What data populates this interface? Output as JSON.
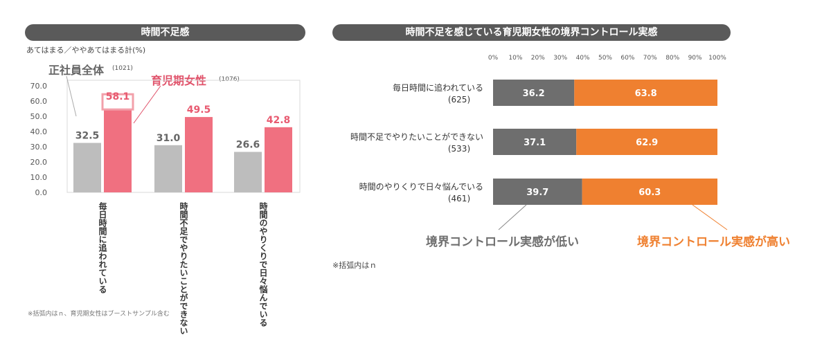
{
  "left": {
    "banner": "時間不足感",
    "subtitle": "あてはまる／ややあてはまる計(%)",
    "legend": {
      "all": {
        "label": "正社員全体",
        "n": "(1021)",
        "color": "#bdbdbd"
      },
      "mothers": {
        "label": "育児期女性",
        "n": "(1076)",
        "color": "#f07080"
      }
    },
    "footnote": "※括弧内はｎ、育児期女性はブーストサンプル含む"
  },
  "right": {
    "banner": "時間不足を感じている育児期女性の境界コントロール実感",
    "footnote": "※括弧内はｎ",
    "legend_low": "境界コントロール実感が低い",
    "legend_high": "境界コントロール実感が高い",
    "colors": {
      "low": "#6e6e6e",
      "high": "#ef8030",
      "high_text": "#ef8030"
    }
  },
  "chart_data": [
    {
      "type": "bar",
      "categories": [
        "毎日時間に追われている",
        "時間不足でやりたいことができない",
        "時間のやりくりで日々悩んでいる"
      ],
      "series": [
        {
          "name": "正社員全体",
          "values": [
            32.5,
            31.0,
            26.6
          ]
        },
        {
          "name": "育児期女性",
          "values": [
            58.1,
            49.5,
            42.8
          ]
        }
      ],
      "ylim": [
        0,
        70
      ],
      "yticks": [
        "70.0",
        "60.0",
        "50.0",
        "40.0",
        "30.0",
        "20.0",
        "10.0",
        "0.0"
      ],
      "value_labels": {
        "all": [
          "32.5",
          "31.0",
          "26.6"
        ],
        "mothers": [
          "58.1",
          "49.5",
          "42.8"
        ]
      }
    },
    {
      "type": "bar",
      "orientation": "horizontal-stacked",
      "categories": [
        "毎日時間に追われている",
        "時間不足でやりたいことができない",
        "時間のやりくりで日々悩んでいる"
      ],
      "n_labels": [
        "(625)",
        "(533)",
        "(461)"
      ],
      "series": [
        {
          "name": "境界コントロール実感が低い",
          "values": [
            36.2,
            37.1,
            39.7
          ]
        },
        {
          "name": "境界コントロール実感が高い",
          "values": [
            63.8,
            62.9,
            60.3
          ]
        }
      ],
      "value_labels": {
        "low": [
          "36.2",
          "37.1",
          "39.7"
        ],
        "high": [
          "63.8",
          "62.9",
          "60.3"
        ]
      },
      "xlim": [
        0,
        100
      ],
      "xticks": [
        "0%",
        "10%",
        "20%",
        "30%",
        "40%",
        "50%",
        "60%",
        "70%",
        "80%",
        "90%",
        "100%"
      ]
    }
  ]
}
